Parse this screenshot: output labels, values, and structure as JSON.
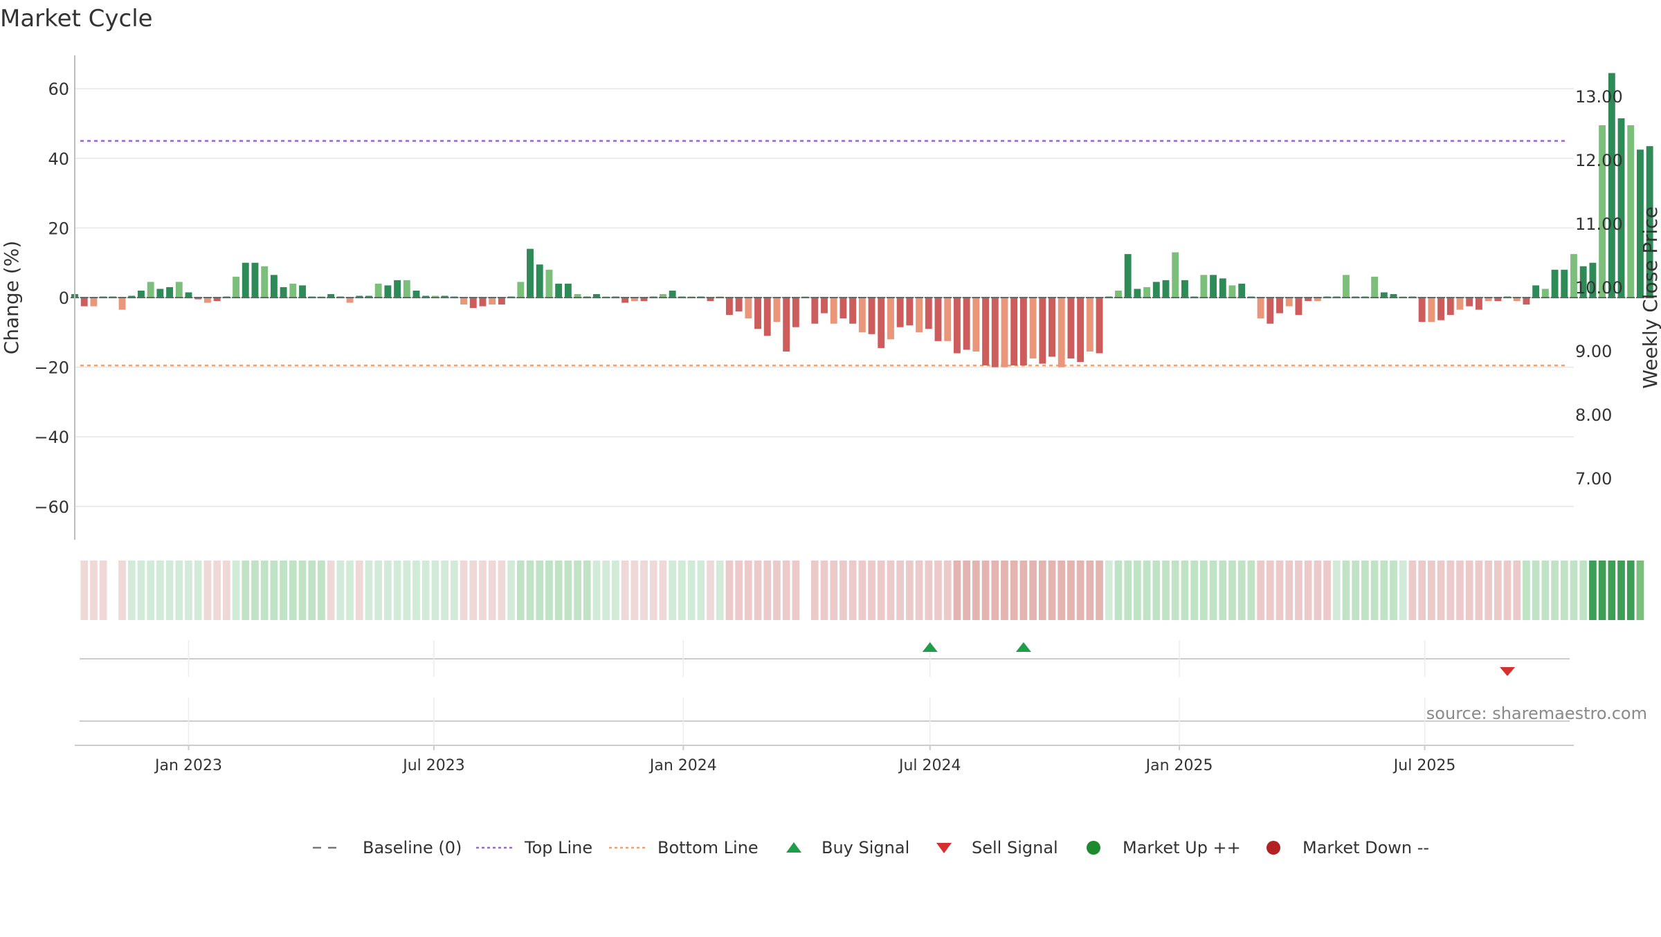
{
  "chart_data": {
    "type": "bar",
    "title": "Market Cycle",
    "ylabel_left": "Change (%)",
    "ylabel_right": "Weekly Close Price",
    "ylim_left": [
      -70,
      70
    ],
    "ylim_right": [
      6.1,
      13.6
    ],
    "yticks_left": [
      -60,
      -40,
      -20,
      0,
      20,
      40,
      60
    ],
    "yticks_left_labels": [
      "−60",
      "−40",
      "−20",
      "0",
      "20",
      "40",
      "60"
    ],
    "yticks_right": [
      7,
      8,
      9,
      10,
      11,
      12,
      13
    ],
    "yticks_right_labels": [
      "7.00",
      "8.00",
      "9.00",
      "10.00",
      "11.00",
      "12.00",
      "13.00"
    ],
    "x_start": "2022-10-09",
    "x_end": "2025-10-19",
    "x_ticks": [
      {
        "date": "2023-01-01",
        "label": "Jan 2023"
      },
      {
        "date": "2023-07-01",
        "label": "Jul 2023"
      },
      {
        "date": "2024-01-01",
        "label": "Jan 2024"
      },
      {
        "date": "2024-07-01",
        "label": "Jul 2024"
      },
      {
        "date": "2025-01-01",
        "label": "Jan 2025"
      },
      {
        "date": "2025-07-01",
        "label": "Jul 2025"
      }
    ],
    "top_line": 45,
    "bottom_line": -19.5,
    "baseline": 0,
    "series": [
      {
        "first_week": "2022-10-09",
        "values": [
          1,
          -2.5,
          -2.5,
          0,
          0,
          -3.5,
          0.5,
          2,
          4.5,
          2.5,
          3,
          4.5,
          1.5,
          -0.5,
          -1.5,
          -1,
          0,
          6,
          10,
          10,
          9,
          6.5,
          3,
          4,
          3.5,
          0,
          0,
          1,
          0,
          -1.5,
          0.5,
          0.5,
          4,
          3.5,
          5,
          5,
          2,
          0.5,
          0.5,
          0.5,
          0,
          -2,
          -3,
          -2.5,
          -2,
          -2,
          0,
          4.5,
          14,
          9.5,
          8,
          4,
          4,
          1,
          0,
          1,
          0,
          0,
          -1.5,
          -1,
          -1,
          0,
          1,
          2,
          0,
          0,
          0,
          -1,
          0,
          -5,
          -4,
          -6,
          -9,
          -11,
          -7,
          -15.5,
          -8.5,
          0,
          -7.5,
          -4.5,
          -7.5,
          -6,
          -7.5,
          -10,
          -10.5,
          -14.5,
          -12,
          -8.5,
          -8,
          -10,
          -9,
          -12.5,
          -12.5,
          -16,
          -15,
          -15.5,
          -19.5,
          -20,
          -20,
          -19.5,
          -19.5,
          -17.5,
          -19,
          -17,
          -20,
          -17.5,
          -18.5,
          -15.5,
          -16,
          0,
          2,
          12.5,
          2.5,
          3,
          4.5,
          5,
          13,
          5,
          0,
          6.5,
          6.5,
          5.5,
          3.5,
          4,
          0,
          -6,
          -7.5,
          -4.5,
          -2.5,
          -5,
          -1,
          -1,
          0,
          0,
          6.5,
          0,
          0,
          6,
          1.5,
          1,
          0,
          0,
          -7,
          -7,
          -6.5,
          -5,
          -3.5,
          -2.5,
          -3.5,
          -1,
          -1,
          0,
          -1,
          -2,
          3.5,
          2.5,
          8,
          8,
          12.5,
          9,
          10,
          49.5,
          64.5,
          51.5,
          49.5,
          42.5,
          43.5
        ]
      }
    ],
    "strength_band_levels": [
      0,
      -1,
      -1,
      -1,
      0,
      -1,
      1,
      1,
      1,
      1,
      1,
      1,
      1,
      1,
      -1,
      -1,
      -1,
      1,
      2,
      2,
      2,
      2,
      2,
      2,
      2,
      2,
      2,
      -1,
      1,
      1,
      -1,
      1,
      1,
      1,
      1,
      1,
      1,
      1,
      1,
      1,
      1,
      -1,
      -1,
      -1,
      -1,
      -1,
      1,
      2,
      2,
      2,
      2,
      2,
      2,
      2,
      2,
      1,
      1,
      1,
      -1,
      -1,
      -1,
      -1,
      -1,
      1,
      1,
      1,
      1,
      -1,
      1,
      -2,
      -2,
      -2,
      -2,
      -2,
      -2,
      -2,
      -2,
      0,
      -2,
      -2,
      -2,
      -2,
      -2,
      -2,
      -2,
      -2,
      -2,
      -2,
      -2,
      -2,
      -2,
      -2,
      -2,
      -3,
      -3,
      -3,
      -3,
      -3,
      -3,
      -3,
      -3,
      -3,
      -3,
      -3,
      -3,
      -3,
      -3,
      -3,
      -3,
      1,
      2,
      2,
      2,
      2,
      2,
      2,
      2,
      2,
      2,
      2,
      2,
      2,
      2,
      2,
      2,
      -2,
      -2,
      -2,
      -2,
      -2,
      -2,
      -2,
      -2,
      1,
      2,
      2,
      2,
      2,
      2,
      2,
      1,
      -2,
      -2,
      -2,
      -2,
      -2,
      -2,
      -2,
      -2,
      -2,
      -2,
      -2,
      -2,
      2,
      2,
      2,
      2,
      2,
      2,
      2,
      4,
      4,
      4,
      4,
      4,
      3
    ],
    "signals": [
      {
        "type": "buy",
        "date": "2024-07-01"
      },
      {
        "type": "buy",
        "date": "2024-09-08"
      },
      {
        "type": "sell",
        "date": "2025-08-31"
      }
    ],
    "source_text": "source: sharemaestro.com",
    "legend": [
      {
        "label": "Baseline (0)",
        "kind": "dash",
        "color": "#777777"
      },
      {
        "label": "Top Line",
        "kind": "dot",
        "color": "#9966cc"
      },
      {
        "label": "Bottom Line",
        "kind": "dot",
        "color": "#f2a06e"
      },
      {
        "label": "Buy Signal",
        "kind": "up-triangle",
        "color": "#1e9e48"
      },
      {
        "label": "Sell Signal",
        "kind": "down-triangle",
        "color": "#d62f2f"
      },
      {
        "label": "Market Up ++",
        "kind": "circle",
        "color": "#1e8a2e"
      },
      {
        "label": "Market Down --",
        "kind": "circle",
        "color": "#b22222"
      }
    ],
    "colors": {
      "up_dark": "#2e8b57",
      "up_light": "#7bbf7b",
      "down_dark": "#cd5c5c",
      "down_light": "#e9967a",
      "top_line": "#9966cc",
      "bottom_line": "#f2a06e",
      "buy": "#1e9e48",
      "sell": "#d62f2f"
    }
  }
}
